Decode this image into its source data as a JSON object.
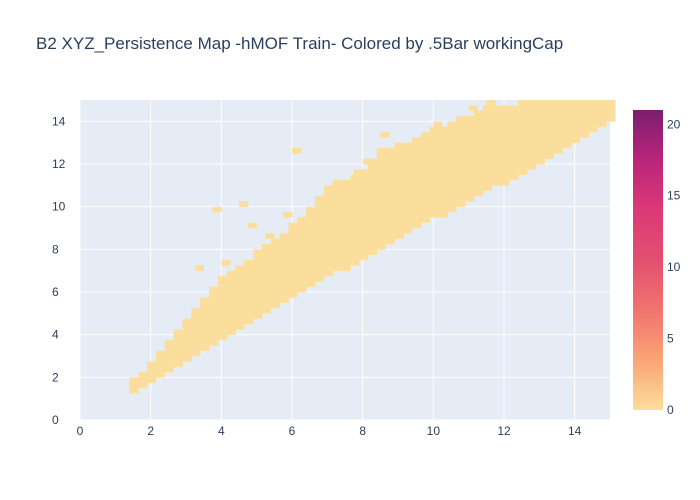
{
  "chart_data": {
    "type": "heatmap",
    "title": "B2 XYZ_Persistence Map -hMOF Train- Colored by .5Bar workingCap",
    "xlabel": "",
    "ylabel": "",
    "xlim": [
      0,
      15
    ],
    "ylim": [
      0,
      15
    ],
    "x_ticks": [
      "0",
      "2",
      "4",
      "6",
      "8",
      "10",
      "12",
      "14"
    ],
    "y_ticks": [
      "0",
      "2",
      "4",
      "6",
      "8",
      "10",
      "12",
      "14"
    ],
    "grid": true,
    "bin_size": 0.25,
    "cell_value": 0,
    "colorbar": {
      "min": 0,
      "max": 21,
      "ticks": [
        "0",
        "5",
        "10",
        "15",
        "20"
      ],
      "colorscale": [
        "#fcde9c",
        "#faa476",
        "#f0746e",
        "#e34f6f",
        "#dc3977",
        "#b9257a",
        "#7c1d6f"
      ],
      "placement": "right"
    },
    "band_profile": [
      {
        "x": 1.4,
        "lo": 1.4,
        "hi": 1.8
      },
      {
        "x": 2.0,
        "lo": 1.8,
        "hi": 2.5
      },
      {
        "x": 2.5,
        "lo": 2.3,
        "hi": 3.5
      },
      {
        "x": 3.0,
        "lo": 2.9,
        "hi": 4.5
      },
      {
        "x": 3.5,
        "lo": 3.4,
        "hi": 5.7
      },
      {
        "x": 4.0,
        "lo": 3.9,
        "hi": 6.7
      },
      {
        "x": 4.5,
        "lo": 4.4,
        "hi": 7.1
      },
      {
        "x": 5.0,
        "lo": 4.8,
        "hi": 7.8
      },
      {
        "x": 5.5,
        "lo": 5.3,
        "hi": 8.3
      },
      {
        "x": 6.0,
        "lo": 5.8,
        "hi": 9.0
      },
      {
        "x": 6.5,
        "lo": 6.3,
        "hi": 9.8
      },
      {
        "x": 7.0,
        "lo": 6.8,
        "hi": 10.8
      },
      {
        "x": 7.5,
        "lo": 7.2,
        "hi": 11.2
      },
      {
        "x": 8.0,
        "lo": 7.7,
        "hi": 11.7
      },
      {
        "x": 8.5,
        "lo": 8.1,
        "hi": 12.5
      },
      {
        "x": 9.0,
        "lo": 8.5,
        "hi": 12.8
      },
      {
        "x": 9.5,
        "lo": 9.0,
        "hi": 13.0
      },
      {
        "x": 10.0,
        "lo": 9.5,
        "hi": 13.5
      },
      {
        "x": 10.5,
        "lo": 9.9,
        "hi": 13.8
      },
      {
        "x": 11.0,
        "lo": 10.3,
        "hi": 14.2
      },
      {
        "x": 11.5,
        "lo": 10.8,
        "hi": 14.6
      },
      {
        "x": 12.0,
        "lo": 11.2,
        "hi": 14.5
      },
      {
        "x": 12.5,
        "lo": 11.7,
        "hi": 14.8
      },
      {
        "x": 13.0,
        "lo": 12.2,
        "hi": 15.0
      },
      {
        "x": 13.5,
        "lo": 12.6,
        "hi": 15.0
      },
      {
        "x": 14.0,
        "lo": 13.1,
        "hi": 15.0
      },
      {
        "x": 14.5,
        "lo": 13.6,
        "hi": 15.0
      },
      {
        "x": 15.0,
        "lo": 14.0,
        "hi": 15.0
      }
    ],
    "outlier_cells": [
      {
        "x": 3.75,
        "y": 9.75
      },
      {
        "x": 4.5,
        "y": 10.0
      },
      {
        "x": 3.25,
        "y": 7.0
      },
      {
        "x": 4.0,
        "y": 7.25
      },
      {
        "x": 5.0,
        "y": 7.5
      },
      {
        "x": 5.25,
        "y": 8.5
      },
      {
        "x": 5.75,
        "y": 9.5
      },
      {
        "x": 6.0,
        "y": 12.5
      },
      {
        "x": 4.75,
        "y": 9.0
      },
      {
        "x": 8.0,
        "y": 12.0
      },
      {
        "x": 8.5,
        "y": 13.25
      },
      {
        "x": 10.0,
        "y": 13.75
      },
      {
        "x": 11.0,
        "y": 14.5
      },
      {
        "x": 11.5,
        "y": 14.75
      },
      {
        "x": 7.75,
        "y": 11.5
      }
    ]
  }
}
